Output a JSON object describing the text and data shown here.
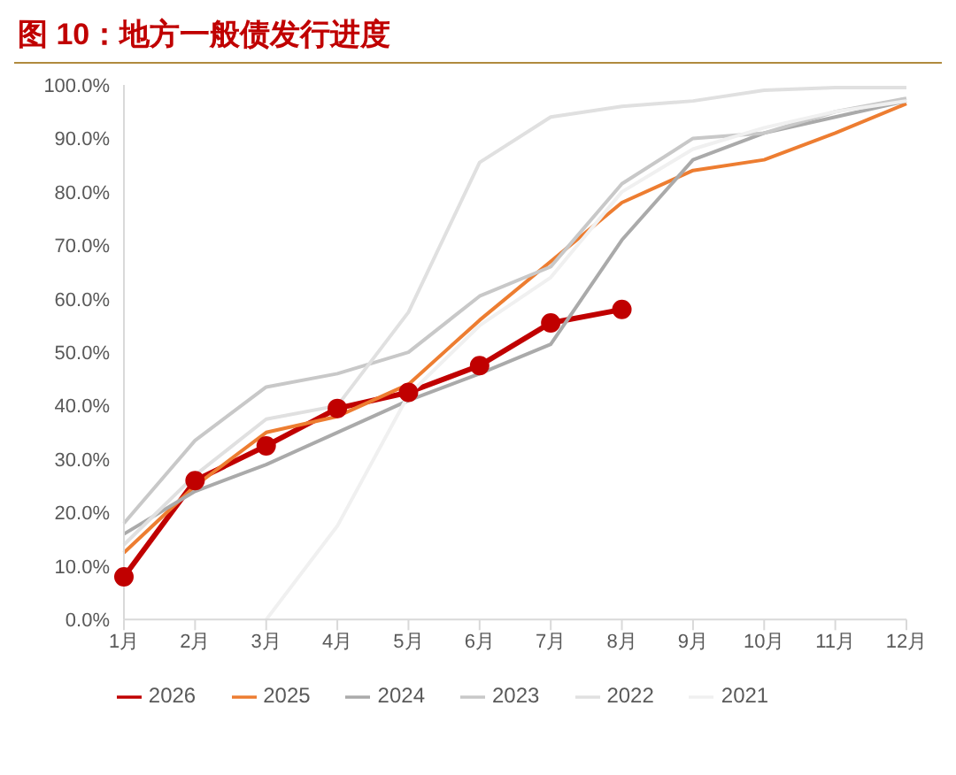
{
  "chart_data": {
    "type": "line",
    "title": "图 10：地方一般债发行进度",
    "categories": [
      "1月",
      "2月",
      "3月",
      "4月",
      "5月",
      "6月",
      "7月",
      "8月",
      "9月",
      "10月",
      "11月",
      "12月"
    ],
    "series": [
      {
        "name": "2026",
        "color": "#c00000",
        "marker": "circle",
        "values": [
          8,
          26,
          32.5,
          39.5,
          42.5,
          47.5,
          55.5,
          58,
          null,
          null,
          null,
          null
        ]
      },
      {
        "name": "2025",
        "color": "#ed7d31",
        "values": [
          12.5,
          25,
          35,
          38,
          44,
          56,
          67,
          78,
          84,
          86,
          91,
          96.5
        ]
      },
      {
        "name": "2024",
        "color": "#aaaaaa",
        "values": [
          16,
          24,
          29,
          35,
          41,
          46,
          51.5,
          71,
          86,
          91,
          94,
          97
        ]
      },
      {
        "name": "2023",
        "color": "#c8c8c8",
        "values": [
          18,
          33.5,
          43.5,
          46,
          50,
          60.5,
          66,
          81.5,
          90,
          91,
          95,
          97.5
        ]
      },
      {
        "name": "2022",
        "color": "#e0e0e0",
        "values": [
          14,
          27,
          37.5,
          40,
          57.5,
          85.5,
          94,
          96,
          97,
          99,
          99.5,
          99.5
        ]
      },
      {
        "name": "2021",
        "color": "#f0f0f0",
        "values": [
          null,
          null,
          0,
          17.5,
          42,
          55,
          64,
          80,
          88,
          92,
          95,
          97
        ]
      }
    ],
    "ylim": [
      0,
      100
    ],
    "yticks": [
      {
        "value": 0,
        "label": "0.0%"
      },
      {
        "value": 10,
        "label": "10.0%"
      },
      {
        "value": 20,
        "label": "20.0%"
      },
      {
        "value": 30,
        "label": "30.0%"
      },
      {
        "value": 40,
        "label": "40.0%"
      },
      {
        "value": 50,
        "label": "50.0%"
      },
      {
        "value": 60,
        "label": "60.0%"
      },
      {
        "value": 70,
        "label": "70.0%"
      },
      {
        "value": 80,
        "label": "80.0%"
      },
      {
        "value": 90,
        "label": "90.0%"
      },
      {
        "value": 100,
        "label": "100.0%"
      }
    ],
    "grid": false,
    "legend": "bottom",
    "marker": "none"
  }
}
